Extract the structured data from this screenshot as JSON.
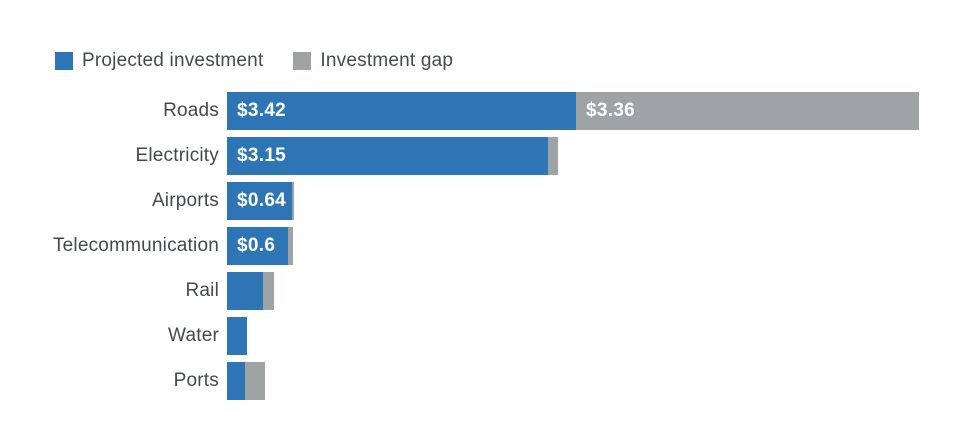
{
  "legend": {
    "items": [
      {
        "label": "Projected investment",
        "color": "#2e75b6"
      },
      {
        "label": "Investment gap",
        "color": "#9ea3a6"
      }
    ]
  },
  "chart_data": {
    "type": "bar",
    "orientation": "horizontal",
    "stacked": true,
    "title": "",
    "xlabel": "",
    "ylabel": "",
    "grid": false,
    "legend_position": "top-left",
    "xlim": [
      0,
      6.9
    ],
    "categories": [
      "Roads",
      "Electricity",
      "Airports",
      "Telecommunication",
      "Rail",
      "Water",
      "Ports"
    ],
    "series": [
      {
        "name": "Projected investment",
        "color": "#2e75b6",
        "values": [
          3.42,
          3.15,
          0.64,
          0.6,
          0.35,
          0.2,
          0.18
        ],
        "labels": [
          "$3.42",
          "$3.15",
          "$0.64",
          "$0.6",
          "",
          "",
          ""
        ]
      },
      {
        "name": "Investment gap",
        "color": "#9ea3a6",
        "values": [
          3.36,
          0.1,
          0.02,
          0.05,
          0.11,
          0,
          0.2
        ],
        "labels": [
          "$3.36",
          "",
          "",
          "",
          "",
          "",
          ""
        ]
      }
    ]
  }
}
